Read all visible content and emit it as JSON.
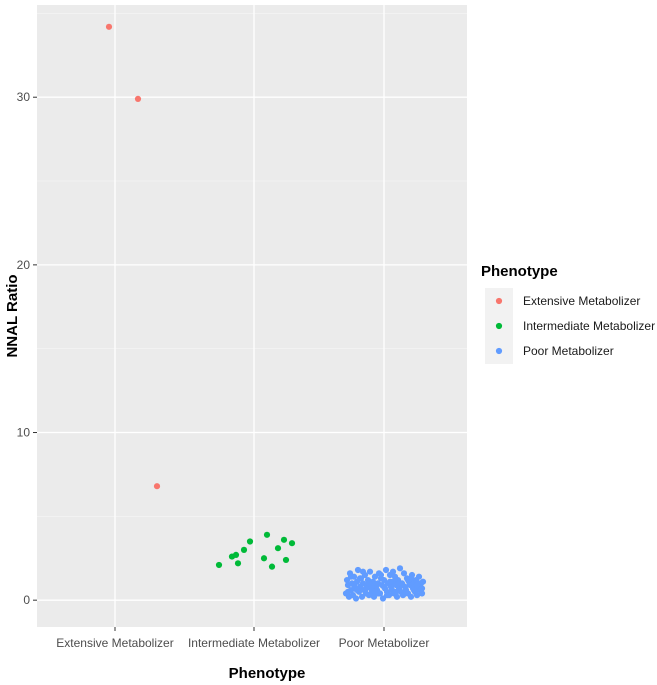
{
  "chart_data": {
    "type": "scatter",
    "xlabel": "Phenotype",
    "ylabel": "NNAL Ratio",
    "categories": [
      "Extensive Metabolizer",
      "Intermediate Metabolizer",
      "Poor Metabolizer"
    ],
    "ylim": [
      -1.6,
      35.5
    ],
    "yticks": [
      0,
      10,
      20,
      30
    ],
    "grid": true,
    "legend": {
      "title": "Phenotype",
      "position": "right",
      "entries": [
        "Extensive Metabolizer",
        "Intermediate Metabolizer",
        "Poor Metabolizer"
      ]
    },
    "colors": {
      "Extensive Metabolizer": "#f8766d",
      "Intermediate Metabolizer": "#00ba38",
      "Poor Metabolizer": "#619cff"
    },
    "series": [
      {
        "name": "Extensive Metabolizer",
        "points": [
          [
            -0.06,
            34.2
          ],
          [
            0.23,
            29.9
          ],
          [
            0.42,
            6.8
          ]
        ]
      },
      {
        "name": "Intermediate Metabolizer",
        "points": [
          [
            -0.35,
            2.1
          ],
          [
            -0.22,
            2.6
          ],
          [
            -0.18,
            2.7
          ],
          [
            -0.16,
            2.2
          ],
          [
            -0.1,
            3.0
          ],
          [
            -0.04,
            3.5
          ],
          [
            0.1,
            2.5
          ],
          [
            0.13,
            3.9
          ],
          [
            0.18,
            2.0
          ],
          [
            0.24,
            3.1
          ],
          [
            0.3,
            3.6
          ],
          [
            0.32,
            2.4
          ],
          [
            0.38,
            3.4
          ]
        ]
      },
      {
        "name": "Poor Metabolizer",
        "points": [
          [
            -0.38,
            0.4
          ],
          [
            -0.37,
            1.2
          ],
          [
            -0.36,
            0.9
          ],
          [
            -0.35,
            0.2
          ],
          [
            -0.34,
            1.6
          ],
          [
            -0.33,
            0.6
          ],
          [
            -0.32,
            1.0
          ],
          [
            -0.31,
            0.3
          ],
          [
            -0.3,
            1.4
          ],
          [
            -0.29,
            0.7
          ],
          [
            -0.28,
            0.1
          ],
          [
            -0.27,
            1.1
          ],
          [
            -0.26,
            1.8
          ],
          [
            -0.25,
            0.5
          ],
          [
            -0.24,
            0.8
          ],
          [
            -0.23,
            1.3
          ],
          [
            -0.22,
            0.2
          ],
          [
            -0.21,
            1.0
          ],
          [
            -0.2,
            0.6
          ],
          [
            -0.19,
            1.5
          ],
          [
            -0.18,
            0.4
          ],
          [
            -0.17,
            0.9
          ],
          [
            -0.16,
            1.2
          ],
          [
            -0.15,
            0.3
          ],
          [
            -0.14,
            1.7
          ],
          [
            -0.13,
            0.7
          ],
          [
            -0.12,
            0.5
          ],
          [
            -0.11,
            1.1
          ],
          [
            -0.1,
            0.2
          ],
          [
            -0.09,
            1.4
          ],
          [
            -0.08,
            0.8
          ],
          [
            -0.07,
            0.6
          ],
          [
            -0.06,
            1.0
          ],
          [
            -0.05,
            1.6
          ],
          [
            -0.04,
            0.4
          ],
          [
            -0.03,
            1.3
          ],
          [
            -0.02,
            0.9
          ],
          [
            -0.01,
            0.1
          ],
          [
            0.0,
            1.2
          ],
          [
            0.01,
            0.7
          ],
          [
            0.02,
            1.8
          ],
          [
            0.03,
            0.5
          ],
          [
            0.04,
            1.0
          ],
          [
            0.05,
            0.3
          ],
          [
            0.06,
            1.5
          ],
          [
            0.07,
            0.8
          ],
          [
            0.08,
            0.6
          ],
          [
            0.09,
            1.1
          ],
          [
            0.1,
            0.4
          ],
          [
            0.11,
            1.4
          ],
          [
            0.12,
            0.9
          ],
          [
            0.13,
            0.2
          ],
          [
            0.14,
            1.2
          ],
          [
            0.15,
            0.7
          ],
          [
            0.16,
            1.9
          ],
          [
            0.17,
            0.5
          ],
          [
            0.18,
            1.0
          ],
          [
            0.19,
            0.3
          ],
          [
            0.2,
            1.6
          ],
          [
            0.21,
            0.8
          ],
          [
            0.22,
            0.6
          ],
          [
            0.23,
            1.3
          ],
          [
            0.24,
            0.4
          ],
          [
            0.25,
            1.1
          ],
          [
            0.26,
            0.9
          ],
          [
            0.27,
            0.2
          ],
          [
            0.28,
            1.5
          ],
          [
            0.29,
            0.7
          ],
          [
            0.3,
            1.0
          ],
          [
            0.31,
            0.5
          ],
          [
            0.32,
            1.2
          ],
          [
            0.33,
            0.3
          ],
          [
            0.34,
            0.8
          ],
          [
            0.35,
            1.4
          ],
          [
            0.36,
            0.6
          ],
          [
            0.37,
            1.0
          ],
          [
            0.38,
            0.4
          ],
          [
            0.39,
            1.1
          ],
          [
            -0.36,
            0.5
          ],
          [
            -0.3,
            0.9
          ],
          [
            -0.24,
            1.3
          ],
          [
            -0.18,
            0.7
          ],
          [
            -0.12,
            1.0
          ],
          [
            -0.06,
            0.4
          ],
          [
            0.0,
            0.8
          ],
          [
            0.06,
            1.1
          ],
          [
            0.12,
            0.5
          ],
          [
            0.18,
            0.9
          ],
          [
            0.24,
            1.2
          ],
          [
            0.3,
            0.6
          ],
          [
            0.36,
            1.0
          ],
          [
            -0.33,
            1.4
          ],
          [
            -0.27,
            0.6
          ],
          [
            -0.21,
            1.7
          ],
          [
            -0.15,
            1.0
          ],
          [
            -0.09,
            0.5
          ],
          [
            -0.03,
            1.5
          ],
          [
            0.03,
            0.3
          ],
          [
            0.09,
            1.7
          ],
          [
            0.15,
            1.0
          ],
          [
            0.21,
            0.4
          ],
          [
            0.27,
            1.3
          ],
          [
            0.33,
            0.9
          ],
          [
            0.38,
            0.7
          ]
        ]
      }
    ]
  }
}
